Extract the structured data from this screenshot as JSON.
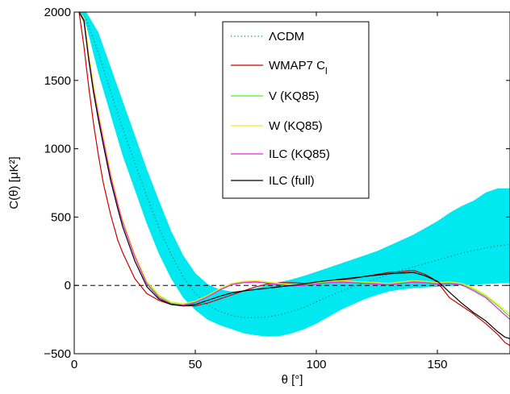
{
  "chart_data": {
    "type": "line",
    "xlabel": "θ [°]",
    "ylabel": "C(θ) [μK²]",
    "xlim": [
      0,
      180
    ],
    "ylim": [
      -500,
      2000
    ],
    "xticks": [
      0,
      50,
      100,
      150
    ],
    "yticks": [
      -500,
      0,
      500,
      1000,
      1500,
      2000
    ],
    "xtick_labels": [
      "0",
      "50",
      "100",
      "150"
    ],
    "ytick_labels": [
      "−500",
      "0",
      "500",
      "1000",
      "1500",
      "2000"
    ],
    "grid": false,
    "legend_position": "top-center",
    "zero_line": {
      "y": 0,
      "style": "dashed",
      "color": "#000000"
    },
    "band": {
      "color": "#00e8f0",
      "x": [
        2,
        5,
        10,
        15,
        20,
        25,
        30,
        35,
        40,
        45,
        50,
        55,
        60,
        65,
        70,
        75,
        80,
        85,
        90,
        95,
        100,
        105,
        110,
        115,
        120,
        125,
        130,
        135,
        140,
        145,
        150,
        155,
        160,
        165,
        170,
        175,
        180
      ],
      "upper": [
        2000,
        2000,
        1850,
        1600,
        1350,
        1100,
        850,
        620,
        400,
        220,
        90,
        10,
        -30,
        -45,
        -40,
        -20,
        5,
        25,
        45,
        70,
        100,
        130,
        160,
        190,
        220,
        250,
        290,
        330,
        370,
        420,
        470,
        530,
        580,
        620,
        680,
        710,
        710
      ],
      "lower": [
        2000,
        1900,
        1550,
        1250,
        950,
        700,
        450,
        230,
        50,
        -90,
        -180,
        -250,
        -290,
        -320,
        -350,
        -365,
        -375,
        -370,
        -350,
        -320,
        -280,
        -230,
        -180,
        -140,
        -100,
        -70,
        -45,
        -30,
        -20,
        -15,
        -10,
        -5,
        0,
        5,
        10,
        15,
        20
      ]
    },
    "series": [
      {
        "name": "ΛCDM",
        "color": "#008080",
        "style": "dotted",
        "x": [
          2,
          5,
          10,
          15,
          20,
          25,
          30,
          35,
          40,
          45,
          50,
          55,
          60,
          65,
          70,
          75,
          80,
          85,
          90,
          95,
          100,
          105,
          110,
          115,
          120,
          125,
          130,
          135,
          140,
          145,
          150,
          155,
          160,
          165,
          170,
          175,
          180
        ],
        "y": [
          2000,
          1950,
          1700,
          1420,
          1150,
          900,
          650,
          420,
          230,
          60,
          -60,
          -140,
          -190,
          -220,
          -235,
          -235,
          -230,
          -215,
          -190,
          -160,
          -120,
          -80,
          -45,
          -10,
          20,
          50,
          80,
          110,
          135,
          160,
          185,
          210,
          235,
          255,
          275,
          290,
          300
        ]
      },
      {
        "name": "WMAP7 C",
        "name_subscript": "l",
        "color": "#cc0000",
        "style": "solid",
        "x": [
          2,
          4,
          6,
          8,
          10,
          12,
          15,
          18,
          20,
          25,
          30,
          35,
          40,
          45,
          50,
          55,
          60,
          65,
          70,
          75,
          80,
          85,
          90,
          95,
          100,
          105,
          110,
          115,
          120,
          125,
          130,
          135,
          140,
          145,
          148,
          150,
          152,
          155,
          160,
          165,
          170,
          175,
          178,
          180
        ],
        "y": [
          2000,
          1750,
          1450,
          1180,
          950,
          750,
          520,
          330,
          240,
          50,
          -60,
          -110,
          -140,
          -150,
          -150,
          -130,
          -100,
          -70,
          -40,
          -10,
          10,
          20,
          20,
          15,
          20,
          30,
          40,
          50,
          65,
          80,
          95,
          100,
          110,
          80,
          50,
          20,
          -20,
          -90,
          -150,
          -210,
          -280,
          -360,
          -420,
          -440
        ]
      },
      {
        "name": "V (KQ85)",
        "color": "#55ee22",
        "style": "solid",
        "x": [
          2,
          4,
          6,
          8,
          10,
          12,
          15,
          18,
          20,
          25,
          30,
          35,
          40,
          45,
          50,
          55,
          60,
          65,
          70,
          75,
          80,
          85,
          90,
          95,
          100,
          105,
          110,
          115,
          120,
          125,
          130,
          135,
          140,
          145,
          150,
          155,
          160,
          165,
          170,
          175,
          180
        ],
        "y": [
          2000,
          1950,
          1680,
          1450,
          1260,
          1080,
          820,
          600,
          470,
          220,
          20,
          -80,
          -130,
          -140,
          -120,
          -80,
          -30,
          10,
          25,
          30,
          20,
          10,
          0,
          5,
          15,
          25,
          30,
          25,
          20,
          15,
          10,
          20,
          30,
          25,
          15,
          20,
          10,
          -30,
          -80,
          -150,
          -230
        ]
      },
      {
        "name": "W (KQ85)",
        "color": "#eeee22",
        "style": "solid",
        "x": [
          2,
          4,
          6,
          8,
          10,
          12,
          15,
          18,
          20,
          25,
          30,
          35,
          40,
          45,
          50,
          55,
          60,
          65,
          70,
          75,
          80,
          85,
          90,
          95,
          100,
          105,
          110,
          115,
          120,
          125,
          130,
          135,
          140,
          145,
          150,
          155,
          160,
          165,
          170,
          175,
          180
        ],
        "y": [
          2000,
          1960,
          1700,
          1470,
          1270,
          1090,
          830,
          610,
          480,
          230,
          30,
          -70,
          -120,
          -135,
          -115,
          -75,
          -25,
          15,
          30,
          35,
          25,
          15,
          5,
          10,
          20,
          30,
          35,
          30,
          25,
          20,
          15,
          25,
          35,
          30,
          20,
          25,
          15,
          -20,
          -70,
          -140,
          -210
        ]
      },
      {
        "name": "ILC (KQ85)",
        "color": "#ee22ee",
        "style": "solid",
        "x": [
          2,
          4,
          6,
          8,
          10,
          12,
          15,
          18,
          20,
          25,
          30,
          35,
          40,
          45,
          50,
          55,
          60,
          65,
          70,
          75,
          80,
          85,
          90,
          95,
          100,
          105,
          110,
          115,
          120,
          125,
          130,
          135,
          140,
          145,
          150,
          155,
          160,
          165,
          170,
          175,
          180
        ],
        "y": [
          2000,
          1930,
          1660,
          1430,
          1240,
          1060,
          800,
          590,
          460,
          210,
          10,
          -90,
          -135,
          -145,
          -125,
          -85,
          -35,
          5,
          20,
          25,
          15,
          5,
          -5,
          0,
          10,
          20,
          25,
          20,
          15,
          10,
          5,
          15,
          25,
          20,
          10,
          15,
          5,
          -40,
          -90,
          -170,
          -250
        ]
      },
      {
        "name": "ILC (full)",
        "color": "#000000",
        "style": "solid",
        "x": [
          2,
          4,
          6,
          8,
          10,
          12,
          15,
          18,
          20,
          25,
          30,
          35,
          40,
          45,
          50,
          55,
          60,
          65,
          70,
          75,
          80,
          85,
          90,
          95,
          100,
          105,
          110,
          115,
          120,
          125,
          130,
          135,
          140,
          145,
          150,
          152,
          155,
          160,
          165,
          170,
          175,
          178,
          180
        ],
        "y": [
          2000,
          1940,
          1650,
          1410,
          1210,
          1030,
          770,
          560,
          430,
          180,
          -10,
          -100,
          -140,
          -150,
          -140,
          -110,
          -80,
          -55,
          -40,
          -30,
          -20,
          -10,
          0,
          10,
          25,
          35,
          45,
          55,
          65,
          75,
          85,
          90,
          95,
          70,
          30,
          0,
          -50,
          -130,
          -200,
          -260,
          -340,
          -380,
          -390
        ]
      }
    ]
  }
}
